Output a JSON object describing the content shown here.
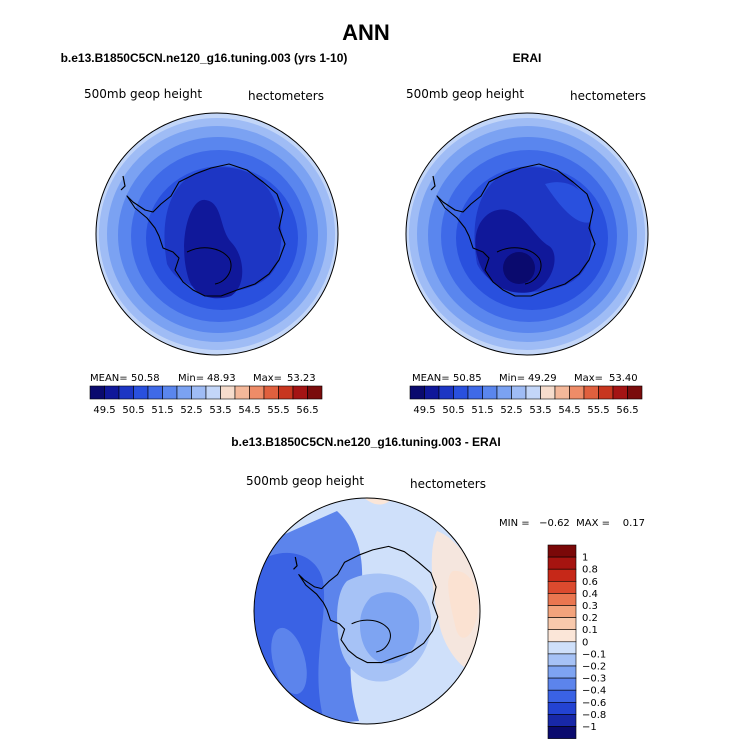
{
  "title": "ANN",
  "panels": [
    {
      "title": "b.e13.B1850C5CN.ne120_g16.tuning.003 (yrs 1-10)",
      "left_label": "500mb geop height",
      "right_label": "hectometers",
      "stats": {
        "mean_label": "MEAN=",
        "mean": "50.58",
        "min_label": "Min=",
        "min": "48.93",
        "max_label": "Max=",
        "max": "53.23"
      }
    },
    {
      "title": "ERAI",
      "left_label": "500mb geop height",
      "right_label": "hectometers",
      "stats": {
        "mean_label": "MEAN=",
        "mean": "50.85",
        "min_label": "Min=",
        "min": "49.29",
        "max_label": "Max=",
        "max": "53.40"
      }
    },
    {
      "title": "b.e13.B1850C5CN.ne120_g16.tuning.003 - ERAI",
      "left_label": "500mb geop height",
      "right_label": "hectometers",
      "stats_text": "MIN =   −0.62  MAX =    0.17"
    }
  ],
  "colors": {
    "abs_scale": [
      "#0a0a6e",
      "#10189a",
      "#1d36c4",
      "#2950de",
      "#3f6ae8",
      "#5a86ee",
      "#7ba2f2",
      "#9fbcf5",
      "#c3d6f8",
      "#f6dccc",
      "#f4b89a",
      "#ee8c68",
      "#e0603e",
      "#c8361f",
      "#a41414",
      "#7a0c0c"
    ],
    "diff_scale": [
      "#0a0a6e",
      "#1828a8",
      "#2343d2",
      "#3a62e4",
      "#5c84ec",
      "#7ea4f2",
      "#a6c2f6",
      "#cfe0fa",
      "#fbe6d8",
      "#f8c9ac",
      "#f3a37c",
      "#ea7650",
      "#dc4a2e",
      "#c62818",
      "#a61410",
      "#7a0808"
    ]
  },
  "chart_data": [
    {
      "type": "heatmap",
      "projection": "south polar stereographic",
      "title": "b.e13.B1850C5CN.ne120_g16.tuning.003 (yrs 1-10)",
      "variable": "500mb geop height",
      "units": "hectometers",
      "mean": 50.58,
      "min": 48.93,
      "max": 53.23,
      "colorbar_levels": [
        49.5,
        50,
        50.5,
        51,
        51.5,
        52,
        52.5,
        53,
        53.5,
        54,
        54.5,
        55,
        55.5,
        56,
        56.5
      ],
      "colorbar_tick_labels": [
        "49.5",
        "50.5",
        "51.5",
        "52.5",
        "53.5",
        "54.5",
        "55.5",
        "56.5"
      ],
      "contour_bands": [
        {
          "label": "<49.5",
          "value": 49.25
        },
        {
          "label": "49.5-50",
          "value": 49.75
        },
        {
          "label": "50-50.5",
          "value": 50.25
        },
        {
          "label": "50.5-51",
          "value": 50.75
        },
        {
          "label": "51-51.5",
          "value": 51.25
        },
        {
          "label": "51.5-52",
          "value": 51.75
        },
        {
          "label": "52-52.5",
          "value": 52.25
        },
        {
          "label": "52.5-53",
          "value": 52.75
        },
        {
          "label": "53-53.5",
          "value": 53.2
        }
      ]
    },
    {
      "type": "heatmap",
      "projection": "south polar stereographic",
      "title": "ERAI",
      "variable": "500mb geop height",
      "units": "hectometers",
      "mean": 50.85,
      "min": 49.29,
      "max": 53.4,
      "colorbar_levels": [
        49.5,
        50,
        50.5,
        51,
        51.5,
        52,
        52.5,
        53,
        53.5,
        54,
        54.5,
        55,
        55.5,
        56,
        56.5
      ],
      "colorbar_tick_labels": [
        "49.5",
        "50.5",
        "51.5",
        "52.5",
        "53.5",
        "54.5",
        "55.5",
        "56.5"
      ],
      "contour_bands": [
        {
          "label": "<49.5",
          "value": 49.35
        },
        {
          "label": "49.5-50",
          "value": 49.75
        },
        {
          "label": "50-50.5",
          "value": 50.25
        },
        {
          "label": "50.5-51",
          "value": 50.75
        },
        {
          "label": "51-51.5",
          "value": 51.25
        },
        {
          "label": "51.5-52",
          "value": 51.75
        },
        {
          "label": "52-52.5",
          "value": 52.25
        },
        {
          "label": "52.5-53",
          "value": 52.75
        },
        {
          "label": "53-53.5",
          "value": 53.3
        }
      ]
    },
    {
      "type": "heatmap",
      "projection": "south polar stereographic",
      "title": "b.e13.B1850C5CN.ne120_g16.tuning.003 - ERAI",
      "variable": "500mb geop height",
      "units": "hectometers",
      "min": -0.62,
      "max": 0.17,
      "colorbar_levels": [
        -1,
        -0.8,
        -0.6,
        -0.4,
        -0.3,
        -0.2,
        -0.1,
        0,
        0.1,
        0.2,
        0.3,
        0.4,
        0.6,
        0.8,
        1
      ],
      "colorbar_tick_labels": [
        "1",
        "0.8",
        "0.6",
        "0.4",
        "0.3",
        "0.2",
        "0.1",
        "0",
        "−0.1",
        "−0.2",
        "−0.3",
        "−0.4",
        "−0.6",
        "−0.8",
        "−1"
      ],
      "contour_bands": [
        {
          "label": "-0.6 to -0.4",
          "value": -0.55
        },
        {
          "label": "-0.4 to -0.3",
          "value": -0.35
        },
        {
          "label": "-0.3 to -0.2",
          "value": -0.25
        },
        {
          "label": "-0.2 to -0.1",
          "value": -0.15
        },
        {
          "label": "-0.1 to 0",
          "value": -0.05
        },
        {
          "label": "0 to 0.1",
          "value": 0.05
        },
        {
          "label": "0.1 to 0.2",
          "value": 0.15
        }
      ]
    }
  ]
}
